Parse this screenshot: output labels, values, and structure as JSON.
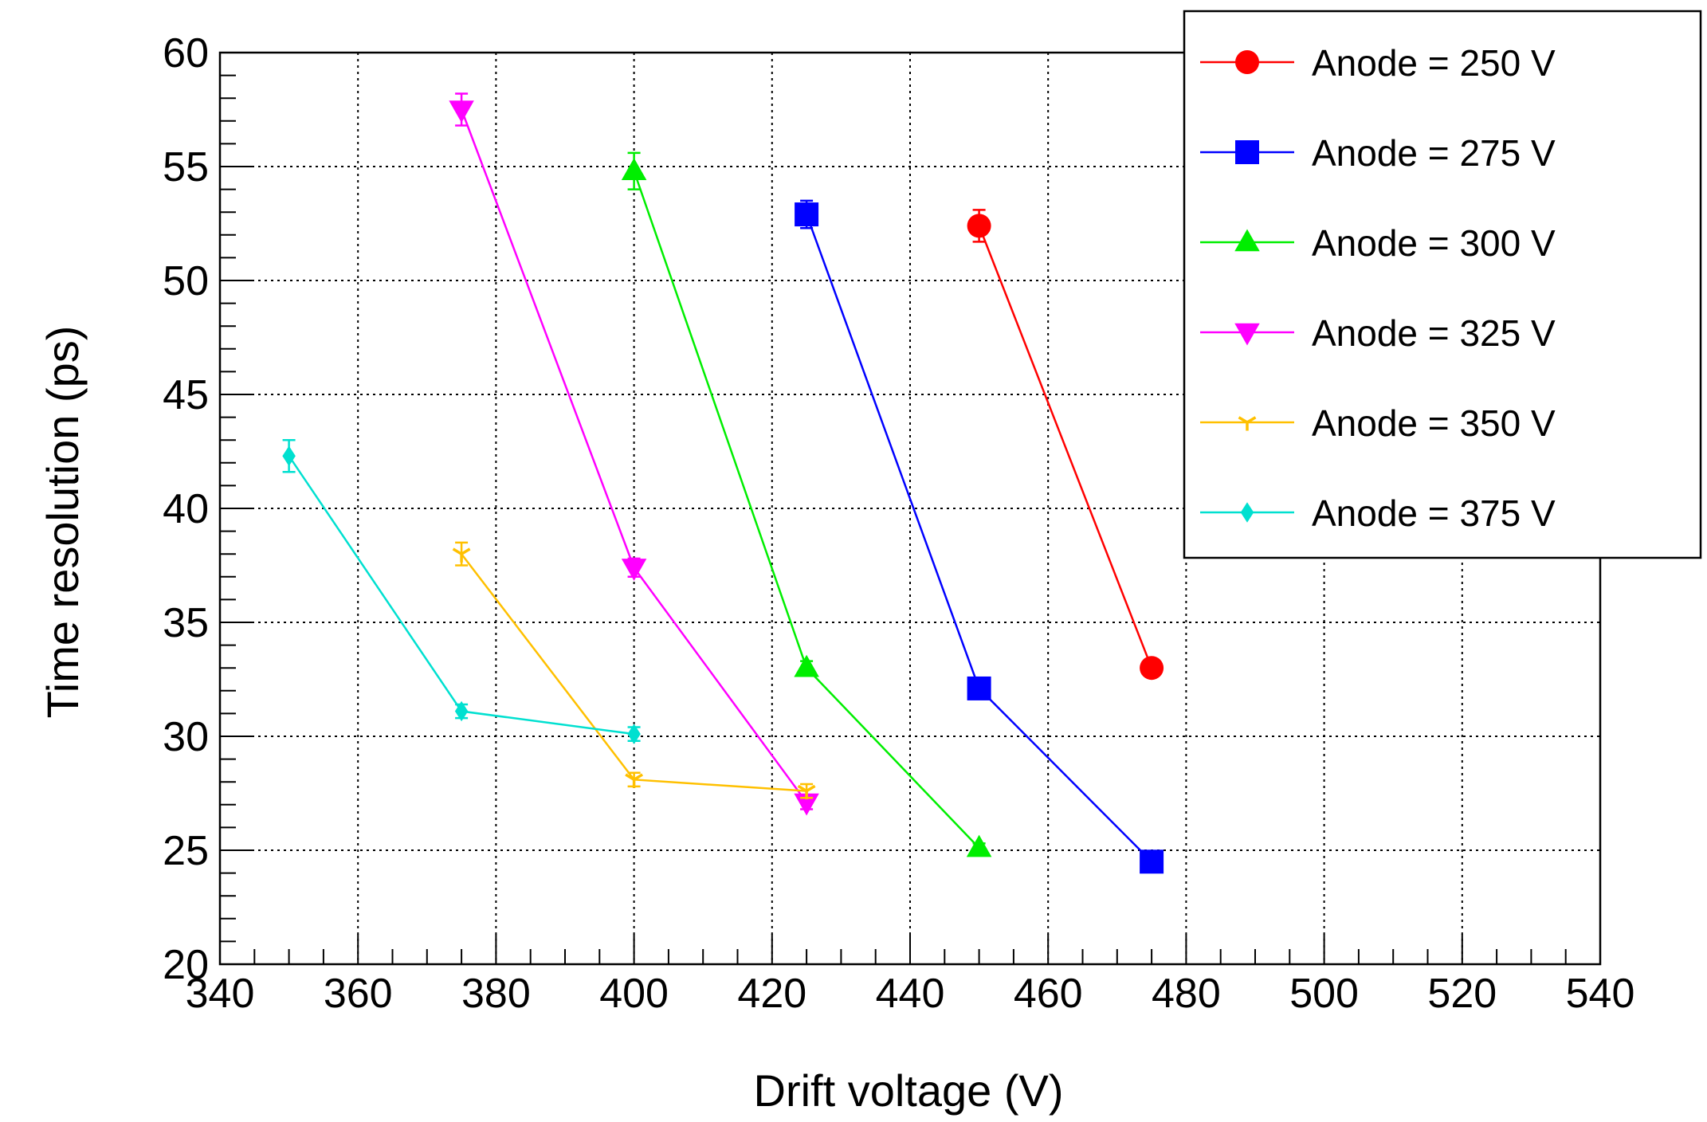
{
  "chart_data": {
    "type": "scatter",
    "title": "",
    "xlabel": "Drift voltage (V)",
    "ylabel": "Time resolution (ps)",
    "xlim": [
      340,
      540
    ],
    "ylim": [
      20,
      60
    ],
    "x_ticks": [
      "340",
      "360",
      "380",
      "400",
      "420",
      "440",
      "460",
      "480",
      "500",
      "520",
      "540"
    ],
    "y_ticks": [
      "20",
      "25",
      "30",
      "35",
      "40",
      "45",
      "50",
      "55",
      "60"
    ],
    "grid": true,
    "legend_position": "top-right",
    "series": [
      {
        "name": "Anode = 250 V",
        "color": "#ff0000",
        "marker": "circle",
        "x": [
          450,
          475
        ],
        "y": [
          52.4,
          33.0
        ],
        "err": [
          0.7,
          0.3
        ]
      },
      {
        "name": "Anode = 275 V",
        "color": "#0000ff",
        "marker": "square",
        "x": [
          425,
          450,
          475
        ],
        "y": [
          52.9,
          32.1,
          24.5
        ],
        "err": [
          0.6,
          0.3,
          0.2
        ]
      },
      {
        "name": "Anode = 300 V",
        "color": "#00ee00",
        "marker": "triangle-up",
        "x": [
          400,
          425,
          450
        ],
        "y": [
          54.8,
          33.0,
          25.1
        ],
        "err": [
          0.8,
          0.3,
          0.2
        ]
      },
      {
        "name": "Anode = 325 V",
        "color": "#ff00ff",
        "marker": "triangle-down",
        "x": [
          375,
          400,
          425
        ],
        "y": [
          57.5,
          37.4,
          27.1
        ],
        "err": [
          0.7,
          0.4,
          0.3
        ]
      },
      {
        "name": "Anode = 350 V",
        "color": "#ffc000",
        "marker": "star",
        "x": [
          375,
          400,
          425
        ],
        "y": [
          38.0,
          28.1,
          27.6
        ],
        "err": [
          0.5,
          0.3,
          0.3
        ]
      },
      {
        "name": "Anode = 375 V",
        "color": "#00e0d0",
        "marker": "diamond",
        "x": [
          350,
          375,
          400
        ],
        "y": [
          42.3,
          31.1,
          30.1
        ],
        "err": [
          0.7,
          0.3,
          0.3
        ]
      }
    ]
  }
}
